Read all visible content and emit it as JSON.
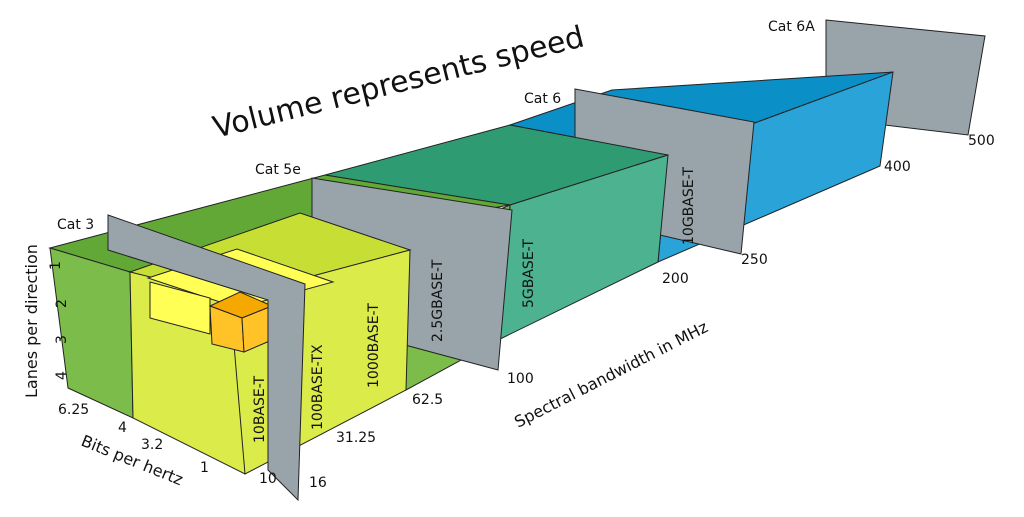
{
  "title": "Volume represents speed",
  "axes": {
    "lanes": "Lanes per direction",
    "bits": "Bits per hertz",
    "bandwidth": "Spectral bandwidth in MHz"
  },
  "lanes_ticks": [
    "1",
    "2",
    "3",
    "4"
  ],
  "bits_ticks": [
    "6.25",
    "4",
    "3.2",
    "1"
  ],
  "bandwidth_ticks": [
    "10",
    "16",
    "31.25",
    "62.5",
    "100",
    "200",
    "250",
    "400",
    "500"
  ],
  "cables": [
    "Cat 3",
    "Cat 5e",
    "Cat 6",
    "Cat 6A"
  ],
  "standards": [
    "10BASE-T",
    "100BASE-TX",
    "1000BASE-T",
    "2.5GBASE-T",
    "5GBASE-T",
    "10GBASE-T"
  ],
  "colors": {
    "std_10": "#f5a800",
    "std_100tx": "#ffff55",
    "std_1000": "#cde23a",
    "std_2500": "#72b437",
    "std_5000": "#2f9b73",
    "std_10000": "#0a8fc6",
    "cable_plate": "#98a4aa"
  }
}
